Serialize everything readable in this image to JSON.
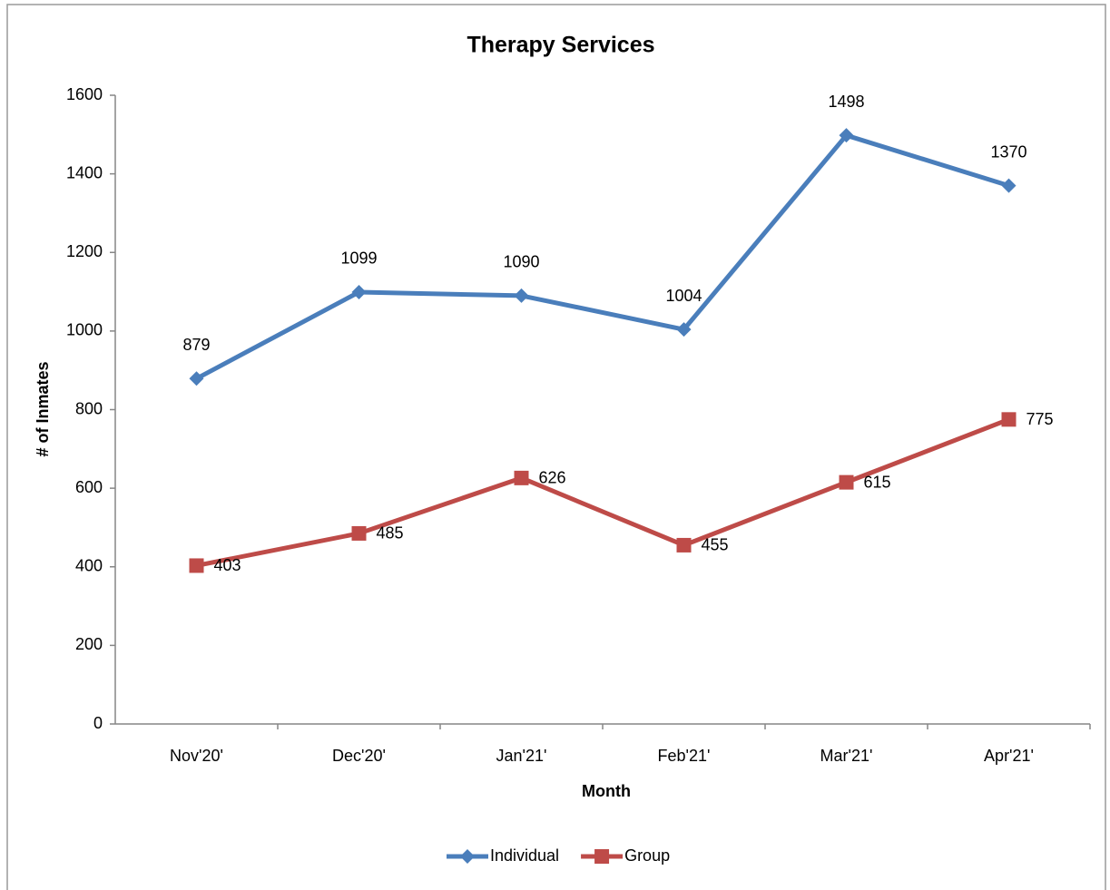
{
  "chart_data": {
    "type": "line",
    "title": "Therapy Services",
    "x_label": "Month",
    "y_label": "# of Inmates",
    "categories": [
      "Nov'20'",
      "Dec'20'",
      "Jan'21'",
      "Feb'21'",
      "Mar'21'",
      "Apr'21'"
    ],
    "series": [
      {
        "name": "Individual",
        "color": "#4a7ebb",
        "marker": "diamond",
        "values": [
          879,
          1099,
          1090,
          1004,
          1498,
          1370
        ]
      },
      {
        "name": "Group",
        "color": "#be4b48",
        "marker": "square",
        "values": [
          403,
          485,
          626,
          455,
          615,
          775
        ]
      }
    ],
    "ylim": [
      0,
      1600
    ],
    "yticks": [
      0,
      200,
      400,
      600,
      800,
      1000,
      1200,
      1400,
      1600
    ],
    "grid": false,
    "legend": "bottom"
  }
}
